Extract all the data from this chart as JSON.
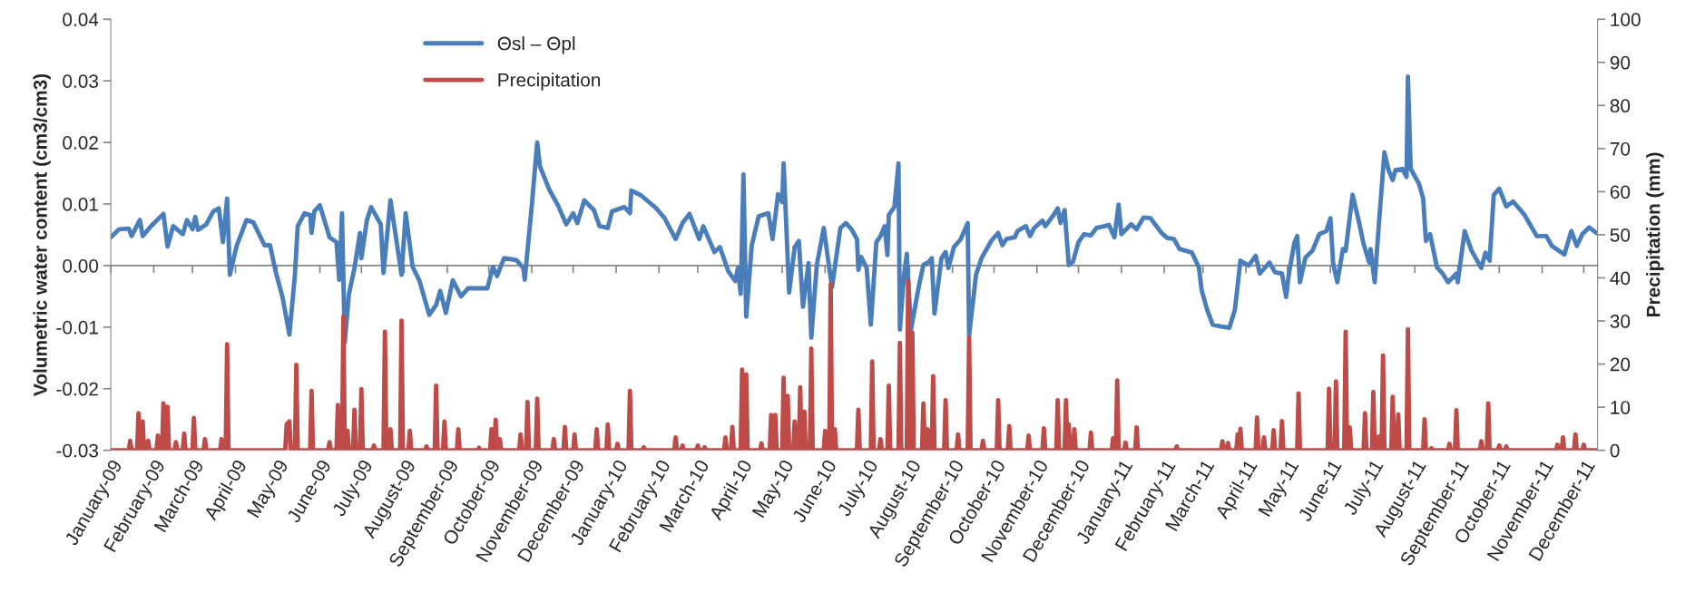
{
  "chart_data": {
    "type": "line",
    "ylabel": "Volumetric water content (cm3/cm3)",
    "y2label": "Precipitation (mm)",
    "xlim": [
      "2009-01-01",
      "2011-12-11"
    ],
    "xticks": [
      {
        "value": "2009-01-01",
        "label": "January-09"
      },
      {
        "value": "2009-02-01",
        "label": "February-09"
      },
      {
        "value": "2009-03-01",
        "label": "March-09"
      },
      {
        "value": "2009-04-01",
        "label": "April-09"
      },
      {
        "value": "2009-05-01",
        "label": "May-09"
      },
      {
        "value": "2009-06-01",
        "label": "June-09"
      },
      {
        "value": "2009-07-01",
        "label": "July-09"
      },
      {
        "value": "2009-08-01",
        "label": "August-09"
      },
      {
        "value": "2009-09-01",
        "label": "September-09"
      },
      {
        "value": "2009-10-01",
        "label": "October-09"
      },
      {
        "value": "2009-11-01",
        "label": "November-09"
      },
      {
        "value": "2009-12-01",
        "label": "December-09"
      },
      {
        "value": "2010-01-01",
        "label": "January-10"
      },
      {
        "value": "2010-02-01",
        "label": "February-10"
      },
      {
        "value": "2010-03-01",
        "label": "March-10"
      },
      {
        "value": "2010-04-01",
        "label": "April-10"
      },
      {
        "value": "2010-05-01",
        "label": "May-10"
      },
      {
        "value": "2010-06-01",
        "label": "June-10"
      },
      {
        "value": "2010-07-01",
        "label": "July-10"
      },
      {
        "value": "2010-08-01",
        "label": "August-10"
      },
      {
        "value": "2010-09-01",
        "label": "September-10"
      },
      {
        "value": "2010-10-01",
        "label": "October-10"
      },
      {
        "value": "2010-11-01",
        "label": "November-10"
      },
      {
        "value": "2010-12-01",
        "label": "December-10"
      },
      {
        "value": "2011-01-01",
        "label": "January-11"
      },
      {
        "value": "2011-02-01",
        "label": "February-11"
      },
      {
        "value": "2011-03-01",
        "label": "March-11"
      },
      {
        "value": "2011-04-01",
        "label": "April-11"
      },
      {
        "value": "2011-05-01",
        "label": "May-11"
      },
      {
        "value": "2011-06-01",
        "label": "June-11"
      },
      {
        "value": "2011-07-01",
        "label": "July-11"
      },
      {
        "value": "2011-08-01",
        "label": "August-11"
      },
      {
        "value": "2011-09-01",
        "label": "September-11"
      },
      {
        "value": "2011-10-01",
        "label": "October-11"
      },
      {
        "value": "2011-11-01",
        "label": "November-11"
      },
      {
        "value": "2011-12-01",
        "label": "December-11"
      }
    ],
    "ylim": [
      -0.03,
      0.04
    ],
    "yticks": [
      {
        "value": -0.03,
        "label": "-0.03"
      },
      {
        "value": -0.02,
        "label": "-0.02"
      },
      {
        "value": -0.01,
        "label": "-0.01"
      },
      {
        "value": 0,
        "label": "0.00"
      },
      {
        "value": 0.01,
        "label": "0.01"
      },
      {
        "value": 0.02,
        "label": "0.02"
      },
      {
        "value": 0.03,
        "label": "0.03"
      },
      {
        "value": 0.04,
        "label": "0.04"
      }
    ],
    "y2lim": [
      0,
      100
    ],
    "y2ticks": [
      0,
      10,
      20,
      30,
      40,
      50,
      60,
      70,
      80,
      90,
      100
    ],
    "legend": "top",
    "series": [
      {
        "name": "Θsl – Θpl",
        "color": "#4a7ebb",
        "x": [
          "2009-01-01",
          "2009-01-07",
          "2009-01-14",
          "2009-01-16",
          "2009-01-22",
          "2009-01-24",
          "2009-01-30",
          "2009-02-08",
          "2009-02-11",
          "2009-02-15",
          "2009-02-22",
          "2009-02-25",
          "2009-03-01",
          "2009-03-03",
          "2009-03-05",
          "2009-03-11",
          "2009-03-16",
          "2009-03-20",
          "2009-03-23",
          "2009-03-26",
          "2009-03-28",
          "2009-04-02",
          "2009-04-09",
          "2009-04-14",
          "2009-04-22",
          "2009-04-26",
          "2009-04-30",
          "2009-05-05",
          "2009-05-10",
          "2009-05-14",
          "2009-05-16",
          "2009-05-21",
          "2009-05-25",
          "2009-05-26",
          "2009-05-28",
          "2009-06-01",
          "2009-06-08",
          "2009-06-13",
          "2009-06-15",
          "2009-06-17",
          "2009-06-19",
          "2009-06-22",
          "2009-06-26",
          "2009-06-30",
          "2009-07-01",
          "2009-07-05",
          "2009-07-08",
          "2009-07-15",
          "2009-07-17",
          "2009-07-22",
          "2009-07-30",
          "2009-08-02",
          "2009-08-07",
          "2009-08-12",
          "2009-08-19",
          "2009-08-24",
          "2009-08-27",
          "2009-08-31",
          "2009-09-05",
          "2009-09-11",
          "2009-09-16",
          "2009-09-30",
          "2009-10-04",
          "2009-10-07",
          "2009-10-12",
          "2009-10-21",
          "2009-10-26",
          "2009-10-27",
          "2009-11-01",
          "2009-11-05",
          "2009-11-07",
          "2009-11-14",
          "2009-11-20",
          "2009-11-26",
          "2009-12-01",
          "2009-12-04",
          "2009-12-09",
          "2009-12-16",
          "2009-12-20",
          "2009-12-26",
          "2009-12-29",
          "2010-01-07",
          "2010-01-11",
          "2010-01-12",
          "2010-01-19",
          "2010-01-30",
          "2010-02-05",
          "2010-02-13",
          "2010-02-18",
          "2010-02-23",
          "2010-03-02",
          "2010-03-05",
          "2010-03-13",
          "2010-03-17",
          "2010-03-23",
          "2010-03-28",
          "2010-03-30",
          "2010-04-01",
          "2010-04-03",
          "2010-04-05",
          "2010-04-09",
          "2010-04-14",
          "2010-04-21",
          "2010-04-24",
          "2010-04-28",
          "2010-05-01",
          "2010-05-02",
          "2010-05-06",
          "2010-05-10",
          "2010-05-13",
          "2010-05-16",
          "2010-05-20",
          "2010-05-22",
          "2010-05-26",
          "2010-05-31",
          "2010-06-04",
          "2010-06-06",
          "2010-06-12",
          "2010-06-16",
          "2010-06-20",
          "2010-06-24",
          "2010-06-25",
          "2010-06-27",
          "2010-07-01",
          "2010-07-04",
          "2010-07-08",
          "2010-07-11",
          "2010-07-14",
          "2010-07-16",
          "2010-07-17",
          "2010-07-21",
          "2010-07-24",
          "2010-07-25",
          "2010-07-28",
          "2010-07-30",
          "2010-08-02",
          "2010-08-08",
          "2010-08-11",
          "2010-08-15",
          "2010-08-17",
          "2010-08-19",
          "2010-08-24",
          "2010-08-27",
          "2010-08-29",
          "2010-09-02",
          "2010-09-07",
          "2010-09-12",
          "2010-09-13",
          "2010-09-18",
          "2010-09-22",
          "2010-09-29",
          "2010-10-04",
          "2010-10-07",
          "2010-10-10",
          "2010-10-16",
          "2010-10-18",
          "2010-10-24",
          "2010-10-27",
          "2010-10-30",
          "2010-11-05",
          "2010-11-07",
          "2010-11-13",
          "2010-11-16",
          "2010-11-18",
          "2010-11-21",
          "2010-11-24",
          "2010-11-27",
          "2010-12-01",
          "2010-12-05",
          "2010-12-10",
          "2010-12-14",
          "2010-12-20",
          "2010-12-23",
          "2010-12-27",
          "2010-12-30",
          "2011-01-01",
          "2011-01-08",
          "2011-01-12",
          "2011-01-17",
          "2011-01-22",
          "2011-01-30",
          "2011-02-03",
          "2011-02-08",
          "2011-02-12",
          "2011-02-21",
          "2011-02-26",
          "2011-02-28",
          "2011-03-04",
          "2011-03-08",
          "2011-03-14",
          "2011-03-20",
          "2011-03-24",
          "2011-03-28",
          "2011-04-03",
          "2011-04-08",
          "2011-04-11",
          "2011-04-18",
          "2011-04-22",
          "2011-04-27",
          "2011-04-30",
          "2011-05-02",
          "2011-05-06",
          "2011-05-08",
          "2011-05-10",
          "2011-05-14",
          "2011-05-19",
          "2011-05-24",
          "2011-05-29",
          "2011-06-01",
          "2011-06-03",
          "2011-06-06",
          "2011-06-10",
          "2011-06-12",
          "2011-06-17",
          "2011-06-21",
          "2011-06-25",
          "2011-06-29",
          "2011-06-30",
          "2011-07-03",
          "2011-07-06",
          "2011-07-10",
          "2011-07-13",
          "2011-07-16",
          "2011-07-18",
          "2011-07-23",
          "2011-07-26",
          "2011-07-27",
          "2011-07-29",
          "2011-08-04",
          "2011-08-07",
          "2011-08-09",
          "2011-08-12",
          "2011-08-17",
          "2011-08-21",
          "2011-08-25",
          "2011-08-31",
          "2011-09-01",
          "2011-09-06",
          "2011-09-11",
          "2011-09-18",
          "2011-09-21",
          "2011-09-24",
          "2011-09-27",
          "2011-10-01",
          "2011-10-06",
          "2011-10-11",
          "2011-10-19",
          "2011-10-28",
          "2011-11-04",
          "2011-11-08",
          "2011-11-17",
          "2011-11-22",
          "2011-11-26",
          "2011-11-30",
          "2011-12-05",
          "2011-12-10"
        ],
        "values": [
          0.0046,
          0.0059,
          0.006,
          0.0048,
          0.0074,
          0.0048,
          0.0064,
          0.0084,
          0.0031,
          0.0064,
          0.0051,
          0.0074,
          0.0059,
          0.0079,
          0.0058,
          0.0067,
          0.0088,
          0.0093,
          0.0038,
          0.0109,
          -0.0015,
          0.0033,
          0.0074,
          0.007,
          0.0033,
          0.0033,
          -0.0009,
          -0.0051,
          -0.0112,
          -0.0015,
          0.0064,
          0.0085,
          0.0082,
          0.0053,
          0.0088,
          0.0098,
          0.0046,
          0.0038,
          -0.0023,
          0.0085,
          -0.0125,
          -0.0046,
          -0.0004,
          0.0053,
          0.0012,
          0.0074,
          0.0095,
          0.0067,
          -0.0012,
          0.0106,
          -0.0015,
          0.0085,
          -0.0002,
          -0.0025,
          -0.008,
          -0.0064,
          -0.0041,
          -0.0077,
          -0.0024,
          -0.005,
          -0.0037,
          -0.0037,
          -0.0002,
          -0.0017,
          0.0012,
          0.0009,
          -0.0004,
          -0.0023,
          0.0095,
          0.02,
          0.0161,
          0.0122,
          0.0098,
          0.0067,
          0.0085,
          0.0069,
          0.0106,
          0.009,
          0.0064,
          0.0061,
          0.0088,
          0.0095,
          0.0085,
          0.0122,
          0.0114,
          0.0093,
          0.0077,
          0.0043,
          0.0069,
          0.0084,
          0.0043,
          0.0064,
          0.0022,
          0.003,
          -0.0009,
          -0.0025,
          -0.0004,
          -0.0046,
          0.0148,
          -0.0083,
          0.0033,
          0.008,
          0.0085,
          0.0043,
          0.0116,
          0.0103,
          0.0166,
          -0.0044,
          0.003,
          0.004,
          -0.0067,
          0.0004,
          -0.0117,
          0.0001,
          0.0061,
          -0.0004,
          -0.0035,
          0.0061,
          0.0069,
          0.0059,
          0.0043,
          -0.0007,
          0.0014,
          -0.0004,
          -0.0096,
          0.0038,
          0.0048,
          0.0064,
          0.0017,
          0.0082,
          0.0095,
          0.0166,
          -0.0104,
          -0.0015,
          0.0019,
          -0.0104,
          -0.003,
          0.0001,
          0.0006,
          0.0012,
          -0.0078,
          0.0012,
          0.0022,
          -0.0004,
          0.003,
          0.0043,
          0.0069,
          -0.0114,
          -0.0015,
          0.0012,
          0.004,
          0.0053,
          0.0033,
          0.0043,
          0.0046,
          0.0056,
          0.0064,
          0.0048,
          0.0061,
          0.0073,
          0.0064,
          0.0082,
          0.0093,
          0.0069,
          0.009,
          0.0001,
          0.0006,
          0.0038,
          0.0051,
          0.0049,
          0.0061,
          0.0064,
          0.0066,
          0.0046,
          0.0099,
          0.0051,
          0.0067,
          0.0059,
          0.0078,
          0.0077,
          0.0053,
          0.0045,
          0.0043,
          0.0027,
          0.0021,
          -0.0003,
          -0.004,
          -0.0072,
          -0.0096,
          -0.0099,
          -0.0101,
          -0.0072,
          0.0008,
          0.0,
          0.0016,
          -0.0013,
          0.0005,
          -0.0011,
          -0.0013,
          -0.0051,
          -0.0013,
          0.0037,
          0.0048,
          -0.0027,
          0.0013,
          0.0024,
          0.0051,
          0.0056,
          0.0077,
          0.0003,
          -0.0027,
          0.0027,
          0.0024,
          0.0115,
          0.0077,
          0.0035,
          0.0005,
          0.0027,
          -0.0027,
          0.0067,
          0.0184,
          0.0155,
          0.0139,
          0.0155,
          0.0157,
          0.0144,
          0.0307,
          0.0157,
          0.0133,
          0.0109,
          0.004,
          0.0051,
          -0.0003,
          -0.0013,
          -0.0027,
          -0.0013,
          -0.0027,
          0.0056,
          0.0024,
          -0.0004,
          0.0021,
          0.0008,
          0.0115,
          0.0125,
          0.0096,
          0.0104,
          0.0083,
          0.0048,
          0.0048,
          0.0032,
          0.0018,
          0.0056,
          0.0032,
          0.0051,
          0.0062,
          0.0053
        ]
      },
      {
        "name": "Precipitation",
        "color": "#be4b48",
        "axis": "y2",
        "x": [
          "2009-01-01",
          "2009-01-14",
          "2009-01-15",
          "2009-01-16",
          "2009-01-20",
          "2009-01-21",
          "2009-01-22",
          "2009-01-23",
          "2009-01-24",
          "2009-01-25",
          "2009-01-27",
          "2009-01-28",
          "2009-01-29",
          "2009-02-03",
          "2009-02-04",
          "2009-02-05",
          "2009-02-07",
          "2009-02-08",
          "2009-02-09",
          "2009-02-10",
          "2009-02-11",
          "2009-02-12",
          "2009-02-16",
          "2009-02-17",
          "2009-02-18",
          "2009-02-22",
          "2009-02-23",
          "2009-02-24",
          "2009-03-01",
          "2009-03-02",
          "2009-03-03",
          "2009-03-09",
          "2009-03-10",
          "2009-03-11",
          "2009-03-21",
          "2009-03-22",
          "2009-03-23",
          "2009-03-25",
          "2009-03-26",
          "2009-03-27",
          "2009-05-07",
          "2009-05-08",
          "2009-05-10",
          "2009-05-11",
          "2009-05-14",
          "2009-05-15",
          "2009-05-16",
          "2009-05-25",
          "2009-05-26",
          "2009-05-27",
          "2009-06-07",
          "2009-06-08",
          "2009-06-09",
          "2009-06-13",
          "2009-06-14",
          "2009-06-15",
          "2009-06-17",
          "2009-06-18",
          "2009-06-19",
          "2009-06-20",
          "2009-06-21",
          "2009-06-22",
          "2009-06-25",
          "2009-06-26",
          "2009-06-27",
          "2009-06-30",
          "2009-07-01",
          "2009-07-02",
          "2009-07-09",
          "2009-07-10",
          "2009-07-11",
          "2009-07-17",
          "2009-07-18",
          "2009-07-19",
          "2009-07-21",
          "2009-07-22",
          "2009-07-23",
          "2009-07-29",
          "2009-07-30",
          "2009-07-31",
          "2009-08-04",
          "2009-08-05",
          "2009-08-06",
          "2009-08-16",
          "2009-08-17",
          "2009-08-18",
          "2009-08-23",
          "2009-08-24",
          "2009-08-25",
          "2009-08-29",
          "2009-08-30",
          "2009-08-31",
          "2009-09-08",
          "2009-09-09",
          "2009-09-10",
          "2009-09-23",
          "2009-09-24",
          "2009-09-25",
          "2009-10-02",
          "2009-10-03",
          "2009-10-05",
          "2009-10-06",
          "2009-10-07",
          "2009-10-08",
          "2009-10-09",
          "2009-10-10",
          "2009-10-23",
          "2009-10-24",
          "2009-10-25",
          "2009-10-28",
          "2009-10-29",
          "2009-10-30",
          "2009-11-04",
          "2009-11-05",
          "2009-11-06",
          "2009-11-16",
          "2009-11-17",
          "2009-11-18",
          "2009-11-24",
          "2009-11-25",
          "2009-11-26",
          "2009-12-01",
          "2009-12-02",
          "2009-12-03",
          "2009-12-17",
          "2009-12-18",
          "2009-12-19",
          "2009-12-25",
          "2009-12-26",
          "2009-12-27",
          "2010-01-01",
          "2010-01-02",
          "2010-01-03",
          "2010-01-10",
          "2010-01-11",
          "2010-01-12",
          "2010-01-20",
          "2010-01-21",
          "2010-01-22",
          "2010-02-12",
          "2010-02-13",
          "2010-02-14",
          "2010-02-17",
          "2010-02-18",
          "2010-02-19",
          "2010-02-28",
          "2010-03-01",
          "2010-03-02",
          "2010-03-05",
          "2010-03-06",
          "2010-03-07",
          "2010-03-20",
          "2010-03-21",
          "2010-03-22",
          "2010-03-25",
          "2010-03-26",
          "2010-03-27",
          "2010-04-01",
          "2010-04-02",
          "2010-04-03",
          "2010-04-04",
          "2010-04-05",
          "2010-04-06",
          "2010-04-15",
          "2010-04-16",
          "2010-04-17",
          "2010-04-22",
          "2010-04-23",
          "2010-04-24",
          "2010-04-25",
          "2010-04-26",
          "2010-04-27",
          "2010-05-01",
          "2010-05-02",
          "2010-05-03",
          "2010-05-04",
          "2010-05-05",
          "2010-05-06",
          "2010-05-09",
          "2010-05-10",
          "2010-05-11",
          "2010-05-13",
          "2010-05-14",
          "2010-05-15",
          "2010-05-16",
          "2010-05-17",
          "2010-05-18",
          "2010-05-21",
          "2010-05-22",
          "2010-05-23",
          "2010-05-31",
          "2010-06-01",
          "2010-06-02",
          "2010-06-04",
          "2010-06-05",
          "2010-06-06",
          "2010-06-07",
          "2010-06-08",
          "2010-06-09",
          "2010-06-24",
          "2010-06-25",
          "2010-06-26",
          "2010-07-04",
          "2010-07-05",
          "2010-07-06",
          "2010-07-10",
          "2010-07-11",
          "2010-07-12",
          "2010-07-16",
          "2010-07-17",
          "2010-07-18",
          "2010-07-24",
          "2010-07-25",
          "2010-07-26",
          "2010-07-30",
          "2010-07-31",
          "2010-08-01",
          "2010-08-02",
          "2010-08-03",
          "2010-08-04",
          "2010-08-10",
          "2010-08-11",
          "2010-08-12",
          "2010-08-13",
          "2010-08-14",
          "2010-08-15",
          "2010-08-17",
          "2010-08-18",
          "2010-08-19",
          "2010-08-26",
          "2010-08-27",
          "2010-08-28",
          "2010-09-04",
          "2010-09-05",
          "2010-09-06",
          "2010-09-12",
          "2010-09-13",
          "2010-09-14",
          "2010-09-22",
          "2010-09-23",
          "2010-09-24",
          "2010-10-03",
          "2010-10-04",
          "2010-10-05",
          "2010-10-11",
          "2010-10-12",
          "2010-10-13",
          "2010-10-25",
          "2010-10-26",
          "2010-10-27",
          "2010-11-05",
          "2010-11-06",
          "2010-11-07",
          "2010-11-15",
          "2010-11-16",
          "2010-11-17",
          "2010-11-21",
          "2010-11-22",
          "2010-11-23",
          "2010-11-24",
          "2010-11-25",
          "2010-11-27",
          "2010-11-28",
          "2010-11-29",
          "2010-12-09",
          "2010-12-10",
          "2010-12-11",
          "2010-12-25",
          "2010-12-26",
          "2010-12-27",
          "2010-12-28",
          "2010-12-29",
          "2010-12-30",
          "2011-01-03",
          "2011-01-04",
          "2011-01-05",
          "2011-01-11",
          "2011-01-12",
          "2011-01-13",
          "2011-02-09",
          "2011-02-10",
          "2011-02-11",
          "2011-03-14",
          "2011-03-15",
          "2011-03-16",
          "2011-03-18",
          "2011-03-19",
          "2011-03-20",
          "2011-03-25",
          "2011-03-26",
          "2011-03-27",
          "2011-03-28",
          "2011-03-29",
          "2011-04-08",
          "2011-04-09",
          "2011-04-10",
          "2011-04-13",
          "2011-04-14",
          "2011-04-15",
          "2011-04-20",
          "2011-04-21",
          "2011-04-22",
          "2011-04-26",
          "2011-04-27",
          "2011-04-28",
          "2011-05-08",
          "2011-05-09",
          "2011-05-10",
          "2011-05-30",
          "2011-05-31",
          "2011-06-01",
          "2011-06-04",
          "2011-06-05",
          "2011-06-06",
          "2011-06-11",
          "2011-06-12",
          "2011-06-13",
          "2011-06-14",
          "2011-06-15",
          "2011-06-16",
          "2011-06-25",
          "2011-06-26",
          "2011-06-27",
          "2011-07-01",
          "2011-07-02",
          "2011-07-03",
          "2011-07-05",
          "2011-07-06",
          "2011-07-07",
          "2011-07-08",
          "2011-07-09",
          "2011-07-10",
          "2011-07-15",
          "2011-07-16",
          "2011-07-17",
          "2011-07-19",
          "2011-07-20",
          "2011-07-21",
          "2011-07-26",
          "2011-07-27",
          "2011-07-28",
          "2011-08-07",
          "2011-08-08",
          "2011-08-09",
          "2011-08-12",
          "2011-08-13",
          "2011-08-14",
          "2011-08-25",
          "2011-08-26",
          "2011-08-27",
          "2011-08-30",
          "2011-08-31",
          "2011-09-01",
          "2011-09-17",
          "2011-09-18",
          "2011-09-19",
          "2011-09-22",
          "2011-09-23",
          "2011-09-24",
          "2011-09-30",
          "2011-10-01",
          "2011-10-02",
          "2011-10-05",
          "2011-10-06",
          "2011-10-07",
          "2011-11-11",
          "2011-11-12",
          "2011-11-13",
          "2011-11-15",
          "2011-11-16",
          "2011-11-17",
          "2011-11-24",
          "2011-11-25",
          "2011-11-26",
          "2011-11-30",
          "2011-12-01",
          "2011-12-02",
          "2011-12-10"
        ],
        "values": [
          0,
          0,
          2.2,
          0,
          0,
          8.6,
          0,
          0,
          6.7,
          0,
          0,
          2.2,
          0,
          0,
          3.4,
          0,
          0,
          10.9,
          0,
          0,
          10.1,
          0,
          0,
          1.9,
          0,
          0,
          3.9,
          0,
          0,
          7.5,
          0,
          0,
          2.6,
          0,
          0,
          2.6,
          0,
          0,
          24.6,
          0,
          0,
          6.0,
          6.7,
          0,
          0,
          19.8,
          0,
          0,
          13.8,
          0,
          0,
          1.9,
          0,
          0,
          10.5,
          0,
          0,
          31.1,
          0,
          0,
          4.5,
          0,
          0,
          9.4,
          0,
          0,
          14.2,
          0,
          0,
          1.1,
          0,
          0,
          27.5,
          0,
          0,
          4.9,
          0,
          0,
          30.1,
          0,
          0,
          4.5,
          0,
          0,
          0.9,
          0,
          0,
          15.0,
          0,
          0,
          6.7,
          0,
          0,
          4.9,
          0,
          0,
          0.6,
          0,
          0,
          4.9,
          0,
          7.1,
          0,
          0,
          2.6,
          0,
          0,
          3.7,
          0,
          0,
          11.2,
          0,
          0,
          12.0,
          0,
          0,
          2.6,
          0,
          0,
          5.4,
          0,
          0,
          3.7,
          0,
          0,
          4.9,
          0,
          0,
          6.0,
          0,
          0,
          1.5,
          0,
          0,
          13.8,
          0,
          0,
          0.7,
          0,
          0,
          3.0,
          0,
          0,
          1.1,
          0,
          0,
          1.1,
          0,
          0,
          0.7,
          0,
          0,
          3.0,
          0,
          0,
          5.4,
          0,
          0,
          18.7,
          0,
          0,
          17.6,
          0,
          0,
          1.6,
          0,
          0,
          8.2,
          0,
          0,
          8.2,
          0,
          0,
          16.8,
          0,
          0,
          12.6,
          0,
          0,
          6.7,
          0,
          0,
          14.6,
          0,
          0,
          9.0,
          0,
          0,
          23.6,
          0,
          0,
          4.5,
          0,
          0,
          38.5,
          0,
          0,
          4.9,
          0,
          0,
          9.4,
          0,
          0,
          20.6,
          0,
          0,
          2.6,
          0,
          0,
          15.0,
          0,
          0,
          24.9,
          0,
          0,
          39.3,
          0,
          0,
          27.3,
          0,
          0,
          10.9,
          0,
          0,
          4.9,
          0,
          0,
          17.2,
          0,
          0,
          11.6,
          0,
          0,
          3.7,
          0,
          0,
          26.2,
          0,
          0,
          2.2,
          0,
          0,
          11.6,
          0,
          0,
          5.6,
          0,
          0,
          3.4,
          0,
          0,
          5.1,
          0,
          0,
          11.6,
          0,
          0,
          11.6,
          0,
          6.0,
          0,
          0,
          4.9,
          0,
          0,
          4.1,
          0,
          0,
          2.8,
          0,
          0,
          16.2,
          0,
          0,
          1.8,
          0,
          0,
          5.3,
          0,
          0,
          0.9,
          0,
          0,
          2.1,
          0,
          0,
          1.7,
          0,
          0,
          3.7,
          0,
          5.0,
          0,
          0,
          7.6,
          0,
          0,
          3.0,
          0,
          0,
          4.7,
          0,
          0,
          6.8,
          0,
          0,
          13.2,
          0,
          0,
          14.3,
          0,
          0,
          16.0,
          0,
          0,
          27.5,
          0,
          0,
          5.3,
          0,
          0,
          8.6,
          0,
          0,
          13.5,
          0,
          0,
          3.2,
          0,
          0,
          22.0,
          0,
          0,
          12.4,
          0,
          0,
          8.3,
          0,
          0,
          28.1,
          0,
          0,
          7.2,
          0,
          0,
          0.5,
          0,
          0,
          1.5,
          0,
          0,
          9.3,
          0,
          0,
          2.1,
          0,
          0,
          10.9,
          0,
          0,
          1.1,
          0,
          0,
          0.9,
          0,
          0,
          1.3,
          0,
          0,
          3.0,
          0,
          0,
          3.7,
          0,
          0,
          1.3,
          0,
          0
        ]
      }
    ]
  }
}
